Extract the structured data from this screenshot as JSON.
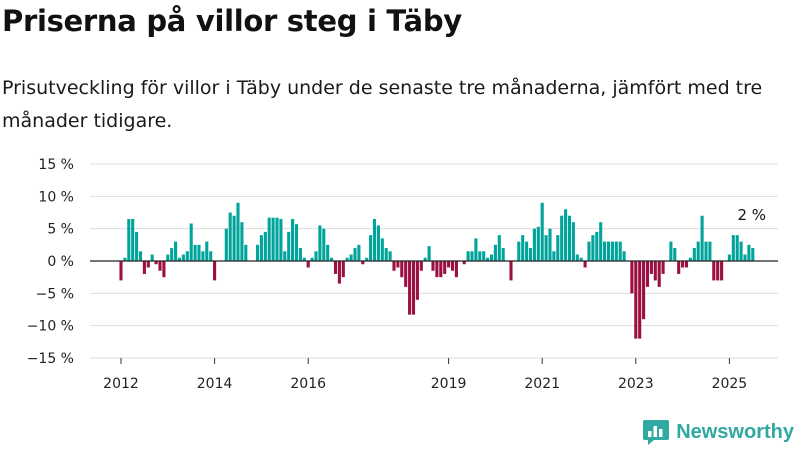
{
  "title": "Priserna på villor steg i Täby",
  "subtitle": "Prisutveckling för villor i Täby under de senaste tre månaderna, jämfört med tre månader tidigare.",
  "brand": "Newsworthy",
  "colors": {
    "positive": "#00a49a",
    "negative": "#9b0f43",
    "brand": "#31a8a0",
    "grid": "#dddddd"
  },
  "chart_data": {
    "type": "bar",
    "ylim": [
      -15,
      15
    ],
    "yticks": [
      15,
      10,
      5,
      0,
      -5,
      -10,
      -15
    ],
    "ytick_labels": [
      "15 %",
      "10 %",
      "5 %",
      "0 %",
      "−5 %",
      "−10 %",
      "−15 %"
    ],
    "xtick_labels": [
      "2012",
      "2014",
      "2016",
      "2019",
      "2021",
      "2023",
      "2025"
    ],
    "xtick_months": [
      0,
      24,
      48,
      84,
      108,
      132,
      156
    ],
    "start_label": "2012-01",
    "annotation": "2 %",
    "grid": true,
    "values": [
      -3,
      0.5,
      6.5,
      6.5,
      4.5,
      1.5,
      -2,
      -1,
      1,
      -0.5,
      -1.5,
      -2.5,
      1,
      2,
      3,
      0.5,
      1,
      1.5,
      5.8,
      2.5,
      2.5,
      1.5,
      3,
      1.5,
      -3,
      0,
      0,
      5,
      7.5,
      7,
      9,
      6,
      2.5,
      0,
      0,
      2.5,
      4,
      4.5,
      6.7,
      6.7,
      6.7,
      6.5,
      1.5,
      4.5,
      6.5,
      5.7,
      2,
      0.5,
      -1,
      0.5,
      1.5,
      5.5,
      5,
      2.5,
      0.5,
      -2,
      -3.5,
      -2.5,
      0.5,
      1,
      2,
      2.5,
      -0.5,
      0.5,
      4,
      6.5,
      5.5,
      3.5,
      2,
      1.5,
      -1.5,
      -1,
      -2.5,
      -4,
      -8.3,
      -8.3,
      -6,
      -1.5,
      0.5,
      2.3,
      -1.5,
      -2.5,
      -2.5,
      -2,
      -1,
      -1.5,
      -2.5,
      0,
      -0.5,
      1.5,
      1.5,
      3.5,
      1.5,
      1.5,
      0.5,
      1,
      2.5,
      4,
      2,
      0,
      -3,
      0,
      3,
      4,
      3,
      2,
      5,
      5.3,
      9,
      4,
      5,
      1.5,
      4,
      7,
      8,
      7,
      6,
      1,
      0.5,
      -1,
      3,
      4,
      4.5,
      6,
      3,
      3,
      3,
      3,
      3,
      1.5,
      0,
      -5,
      -12,
      -12,
      -9,
      -4,
      -2,
      -3,
      -4,
      -2,
      0,
      3,
      2,
      -2,
      -1,
      -1,
      0.5,
      2,
      3,
      7,
      3,
      3,
      -3,
      -3,
      -3,
      0,
      1,
      4,
      4,
      3,
      1,
      2.5,
      2
    ]
  }
}
